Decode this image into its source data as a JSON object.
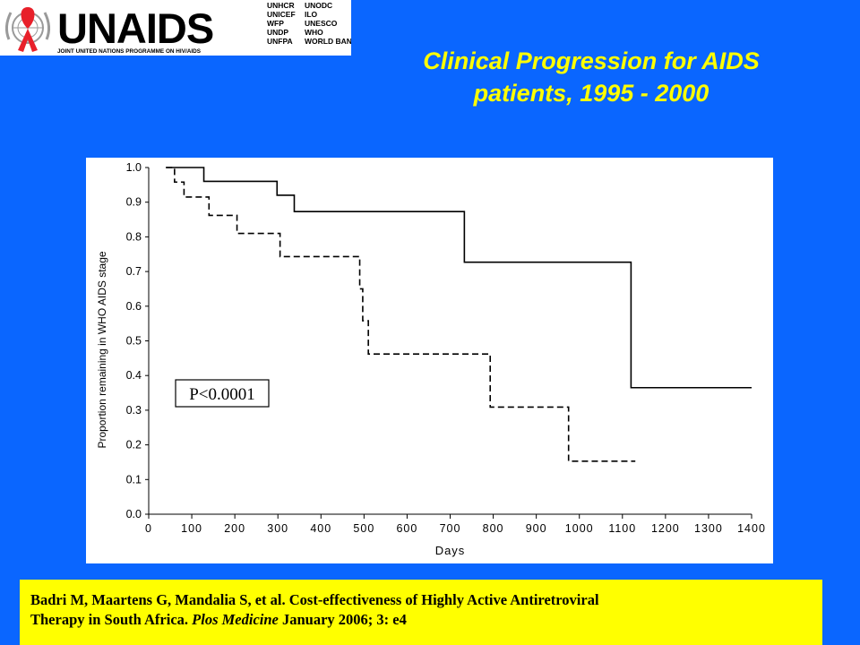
{
  "header": {
    "logo": {
      "wordmark": "UNAIDS",
      "subtitle": "JOINT UNITED NATIONS PROGRAMME ON HIV/AIDS",
      "cosponsors_col1": [
        "UNHCR",
        "UNICEF",
        "WFP",
        "UNDP",
        "UNFPA"
      ],
      "cosponsors_col2": [
        "UNODC",
        "ILO",
        "UNESCO",
        "WHO",
        "WORLD BANK"
      ],
      "colors": {
        "ribbon": "#e8202a",
        "wordmark": "#000000",
        "un_emblem": "#9a9a9a"
      }
    },
    "title_line1": "Clinical Progression for AIDS",
    "title_line2": "patients, 1995 - 2000"
  },
  "chart_data": {
    "type": "line",
    "step": true,
    "xlabel": "Days",
    "ylabel": "Proportion remaining in WHO AIDS stage",
    "xlim": [
      0,
      1400
    ],
    "ylim": [
      0,
      1.0
    ],
    "x_ticks": [
      0,
      100,
      200,
      300,
      400,
      500,
      600,
      700,
      800,
      900,
      1000,
      1100,
      1200,
      1300,
      1400
    ],
    "y_ticks": [
      "0.0",
      "0.1",
      "0.2",
      "0.3",
      "0.4",
      "0.5",
      "0.6",
      "0.7",
      "0.8",
      "0.9",
      "1.0"
    ],
    "grid": false,
    "annotation": "P<0.0001",
    "series": [
      {
        "style": "solid",
        "points": [
          [
            40,
            1.0
          ],
          [
            128,
            0.96
          ],
          [
            298,
            0.92
          ],
          [
            338,
            0.873
          ],
          [
            733,
            0.727
          ],
          [
            1120,
            0.365
          ],
          [
            1400,
            0.365
          ]
        ]
      },
      {
        "style": "dashed",
        "points": [
          [
            40,
            1.0
          ],
          [
            60,
            0.958
          ],
          [
            82,
            0.915
          ],
          [
            140,
            0.862
          ],
          [
            205,
            0.81
          ],
          [
            305,
            0.743
          ],
          [
            490,
            0.65
          ],
          [
            497,
            0.558
          ],
          [
            510,
            0.462
          ],
          [
            793,
            0.309
          ],
          [
            975,
            0.153
          ],
          [
            1130,
            0.153
          ]
        ]
      }
    ]
  },
  "citation": {
    "line1": "Badri M, Maartens G, Mandalia S, et al. Cost-effectiveness  of Highly Active Antiretroviral",
    "line2_a": "Therapy in South Africa. ",
    "line2_journal": "Plos Medicine",
    "line2_b": " January 2006; 3: e4"
  },
  "colors": {
    "slide_background": "#0a66ff",
    "title": "#ffff00",
    "citation_box": "#ffff00",
    "chart_background": "#ffffff",
    "chart_ink": "#000000"
  }
}
